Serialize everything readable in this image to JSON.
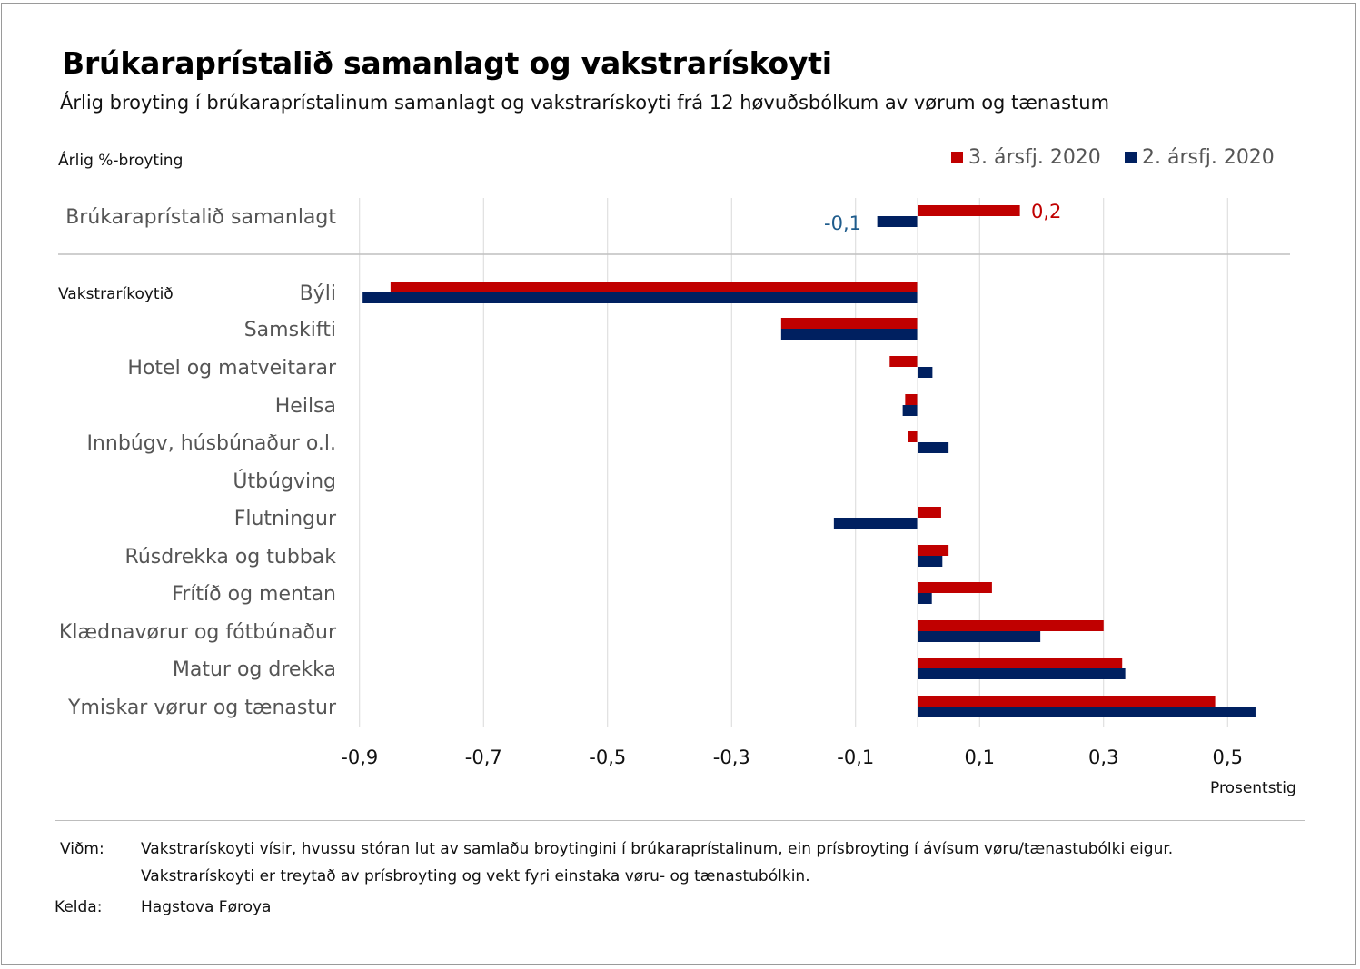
{
  "title": "Brúkaraprístalið samanlagt og vakstrarískoyti",
  "subtitle": "Árlig broyting í brúkaraprístalinum samanlagt og vakstrarískoyti frá 12 høvuðsbólkum av vørum og tænastum",
  "legend": {
    "q3": "3.  ársfj. 2020",
    "q2": "2.  ársfj. 2020",
    "q3_color": "#c00000",
    "q2_color": "#002060"
  },
  "chart_data": {
    "type": "bar",
    "orientation": "horizontal",
    "ylabel": "Árlig %-broyting",
    "xlabel": "Prosentstig",
    "xlim": [
      -0.9,
      0.6
    ],
    "xticks": [
      "-0,9",
      "-0,7",
      "-0,5",
      "-0,3",
      "-0,1",
      "0,1",
      "0,3",
      "0,5"
    ],
    "xtick_values": [
      -0.9,
      -0.7,
      -0.5,
      -0.3,
      -0.1,
      0.1,
      0.3,
      0.5
    ],
    "group_label": "Vakstraríkoytið",
    "categories": [
      "Brúkaraprístalið samanlagt",
      "Býli",
      "Samskifti",
      "Hotel og matveitarar",
      "Heilsa",
      "Innbúgv,  húsbúnaður o.l.",
      "Útbúgving",
      "Flutningur",
      "Rúsdrekka og tubbak",
      "Frítíð og mentan",
      "Klædnavørur og fótbúnaður",
      "Matur og drekka",
      "Ymiskar vørur og tænastur"
    ],
    "series": [
      {
        "name": "3.  ársfj. 2020",
        "color": "#c00000",
        "values": [
          0.165,
          -0.85,
          -0.22,
          -0.045,
          -0.02,
          -0.015,
          0.0,
          0.038,
          0.05,
          0.12,
          0.3,
          0.33,
          0.48
        ]
      },
      {
        "name": "2.  ársfj. 2020",
        "color": "#002060",
        "values": [
          -0.065,
          -0.895,
          -0.22,
          0.024,
          -0.024,
          0.05,
          0.0,
          -0.135,
          0.04,
          0.023,
          0.198,
          0.335,
          0.545
        ]
      }
    ],
    "data_labels": {
      "q3_total": "0,2",
      "q2_total": "-0,1"
    }
  },
  "notes": {
    "vidm_label": "Viðm:",
    "vidm_line1": "Vakstrarískoyti vísir, hvussu stóran lut av samlaðu broytingini í brúkaraprístalinum, ein prísbroyting í ávísum vøru/tænastubólki eigur.",
    "vidm_line2": "Vakstrarískoyti er treytað av prísbroyting og vekt fyri einstaka vøru- og tænastubólkin.",
    "kelda_label": "Kelda:",
    "kelda_value": "Hagstova Føroya"
  }
}
